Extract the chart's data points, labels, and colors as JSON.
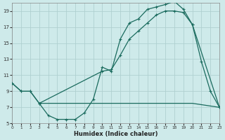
{
  "xlabel": "Humidex (Indice chaleur)",
  "xlim": [
    0,
    23
  ],
  "ylim": [
    5,
    20
  ],
  "yticks": [
    5,
    7,
    9,
    11,
    13,
    15,
    17,
    19
  ],
  "xticks": [
    0,
    1,
    2,
    3,
    4,
    5,
    6,
    7,
    8,
    9,
    10,
    11,
    12,
    13,
    14,
    15,
    16,
    17,
    18,
    19,
    20,
    21,
    22,
    23
  ],
  "bg_color": "#ceeaea",
  "line_color": "#1a6b5e",
  "grid_color": "#afd0d0",
  "curve1_x": [
    0,
    1,
    2,
    3,
    4,
    5,
    6,
    7,
    8,
    9,
    10,
    11,
    12,
    13,
    14,
    15,
    16,
    17,
    18,
    19,
    20,
    21,
    22,
    23
  ],
  "curve1_y": [
    10,
    9,
    9,
    7.5,
    6.0,
    5.5,
    5.5,
    5.5,
    6.3,
    8.0,
    12.0,
    11.5,
    15.5,
    17.5,
    18.0,
    19.2,
    19.5,
    19.8,
    20.2,
    19.2,
    17.3,
    12.7,
    9.0,
    7.0
  ],
  "curve2_x": [
    0,
    1,
    2,
    3,
    10,
    11,
    12,
    13,
    14,
    15,
    16,
    17,
    18,
    19,
    20,
    23
  ],
  "curve2_y": [
    10,
    9,
    9,
    7.5,
    11.5,
    11.7,
    13.5,
    15.5,
    16.5,
    17.5,
    18.5,
    19.0,
    19.0,
    18.8,
    17.3,
    7.0
  ],
  "curve3_x": [
    3,
    4,
    5,
    6,
    7,
    8,
    9,
    10,
    11,
    12,
    13,
    14,
    15,
    16,
    17,
    18,
    19,
    20,
    23
  ],
  "curve3_y": [
    7.5,
    7.5,
    7.5,
    7.5,
    7.5,
    7.5,
    7.5,
    7.5,
    7.5,
    7.5,
    7.5,
    7.5,
    7.5,
    7.5,
    7.5,
    7.5,
    7.5,
    7.5,
    7.0
  ]
}
